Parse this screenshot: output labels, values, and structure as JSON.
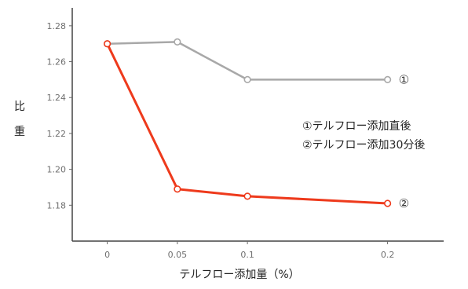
{
  "chart_data": {
    "type": "line",
    "title": "",
    "xlabel": "テルフロー添加量（%）",
    "ylabel": "比重",
    "x": [
      0,
      0.05,
      0.1,
      0.2
    ],
    "x_tick_labels": [
      "0",
      "0.05",
      "0.1",
      "0.2"
    ],
    "xlim": [
      -0.025,
      0.24
    ],
    "ylim": [
      1.16,
      1.29
    ],
    "y_ticks": [
      1.18,
      1.2,
      1.22,
      1.24,
      1.26,
      1.28
    ],
    "y_tick_labels": [
      "1.18",
      "1.20",
      "1.22",
      "1.24",
      "1.26",
      "1.28"
    ],
    "grid": false,
    "series": [
      {
        "name": "テルフロー添加直後",
        "marker_label": "①",
        "color": "#a8a8a8",
        "values": [
          1.27,
          1.271,
          1.25,
          1.25
        ]
      },
      {
        "name": "テルフロー添加30分後",
        "marker_label": "②",
        "color": "#ee3a1c",
        "values": [
          1.27,
          1.189,
          1.185,
          1.181
        ]
      }
    ],
    "legend": {
      "placement": "right",
      "entries": [
        "①テルフロー添加直後",
        "②テルフロー添加30分後"
      ]
    }
  }
}
